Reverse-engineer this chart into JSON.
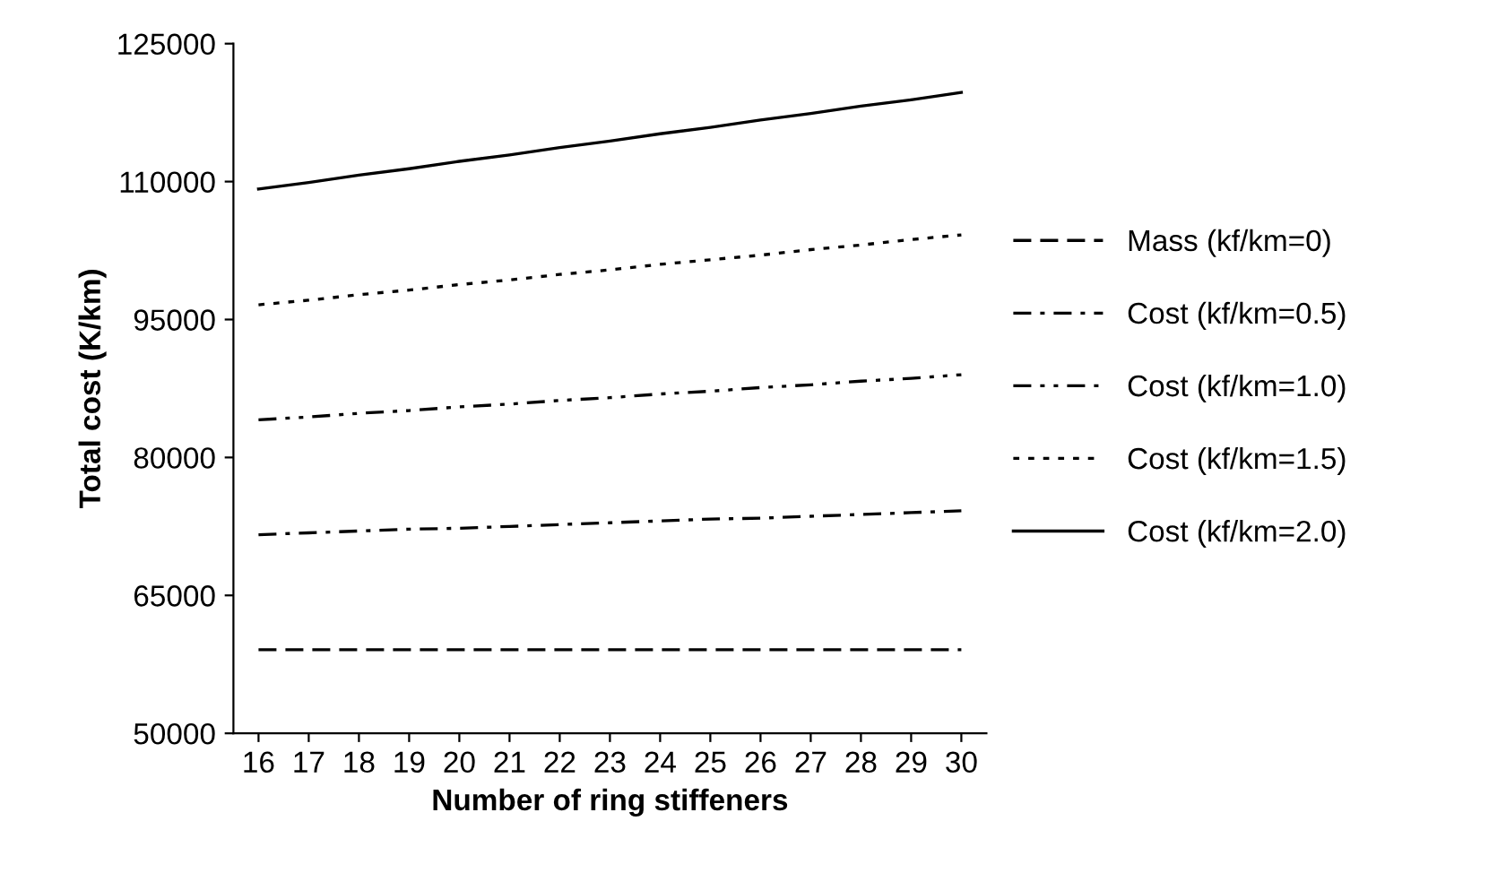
{
  "chart_data": {
    "type": "line",
    "xlabel": "Number of ring stiffeners",
    "ylabel": "Total cost (K/km)",
    "categories": [
      "16",
      "17",
      "18",
      "19",
      "20",
      "21",
      "22",
      "23",
      "24",
      "25",
      "26",
      "27",
      "28",
      "29",
      "30"
    ],
    "ylim": [
      50000,
      125000
    ],
    "yticks": [
      50000,
      65000,
      80000,
      95000,
      110000,
      125000
    ],
    "grid": false,
    "legend": "right",
    "marker": "none",
    "series": [
      {
        "name": "Mass (kf/km=0)",
        "color": "#000000",
        "line_style": "dashed",
        "values": [
          59100,
          59100,
          59100,
          59100,
          59100,
          59100,
          59100,
          59100,
          59100,
          59100,
          59100,
          59100,
          59100,
          59100,
          59100
        ]
      },
      {
        "name": "Cost (kf/km=0.5)",
        "color": "#000000",
        "line_style": "dashdot",
        "values": [
          71600,
          71800,
          72000,
          72200,
          72300,
          72500,
          72700,
          72900,
          73100,
          73300,
          73400,
          73600,
          73800,
          74000,
          74200
        ]
      },
      {
        "name": "Cost (kf/km=1.0)",
        "color": "#000000",
        "line_style": "dashdotdot",
        "values": [
          84100,
          84400,
          84800,
          85100,
          85500,
          85800,
          86200,
          86500,
          86900,
          87200,
          87600,
          87900,
          88300,
          88600,
          89000
        ]
      },
      {
        "name": "Cost (kf/km=1.5)",
        "color": "#000000",
        "line_style": "dotted",
        "values": [
          96600,
          97100,
          97700,
          98200,
          98800,
          99300,
          99900,
          100400,
          101000,
          101500,
          102000,
          102600,
          103100,
          103700,
          104200
        ]
      },
      {
        "name": "Cost (kf/km=2.0)",
        "color": "#000000",
        "line_style": "solid",
        "values": [
          109200,
          109900,
          110700,
          111400,
          112200,
          112900,
          113700,
          114400,
          115200,
          115900,
          116700,
          117400,
          118200,
          118900,
          119700
        ]
      }
    ]
  }
}
